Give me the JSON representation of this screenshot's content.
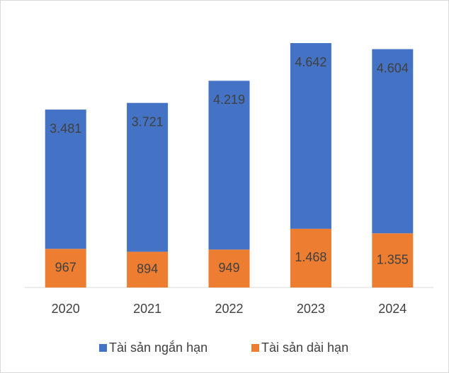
{
  "chart_data": {
    "type": "stacked_bar",
    "categories": [
      "2020",
      "2021",
      "2022",
      "2023",
      "2024"
    ],
    "series": [
      {
        "name": "Tài sản dài hạn",
        "color": "#ed7d31",
        "values": [
          967,
          894,
          949,
          1468,
          1355
        ],
        "value_labels": [
          "967",
          "894",
          "949",
          "1.468",
          "1.355"
        ]
      },
      {
        "name": "Tài sản ngắn hạn",
        "color": "#4472c4",
        "values": [
          3481,
          3721,
          4219,
          4642,
          4604
        ],
        "value_labels": [
          "3.481",
          "3.721",
          "4.219",
          "4.642",
          "4.604"
        ]
      }
    ],
    "legend": "bottom"
  }
}
